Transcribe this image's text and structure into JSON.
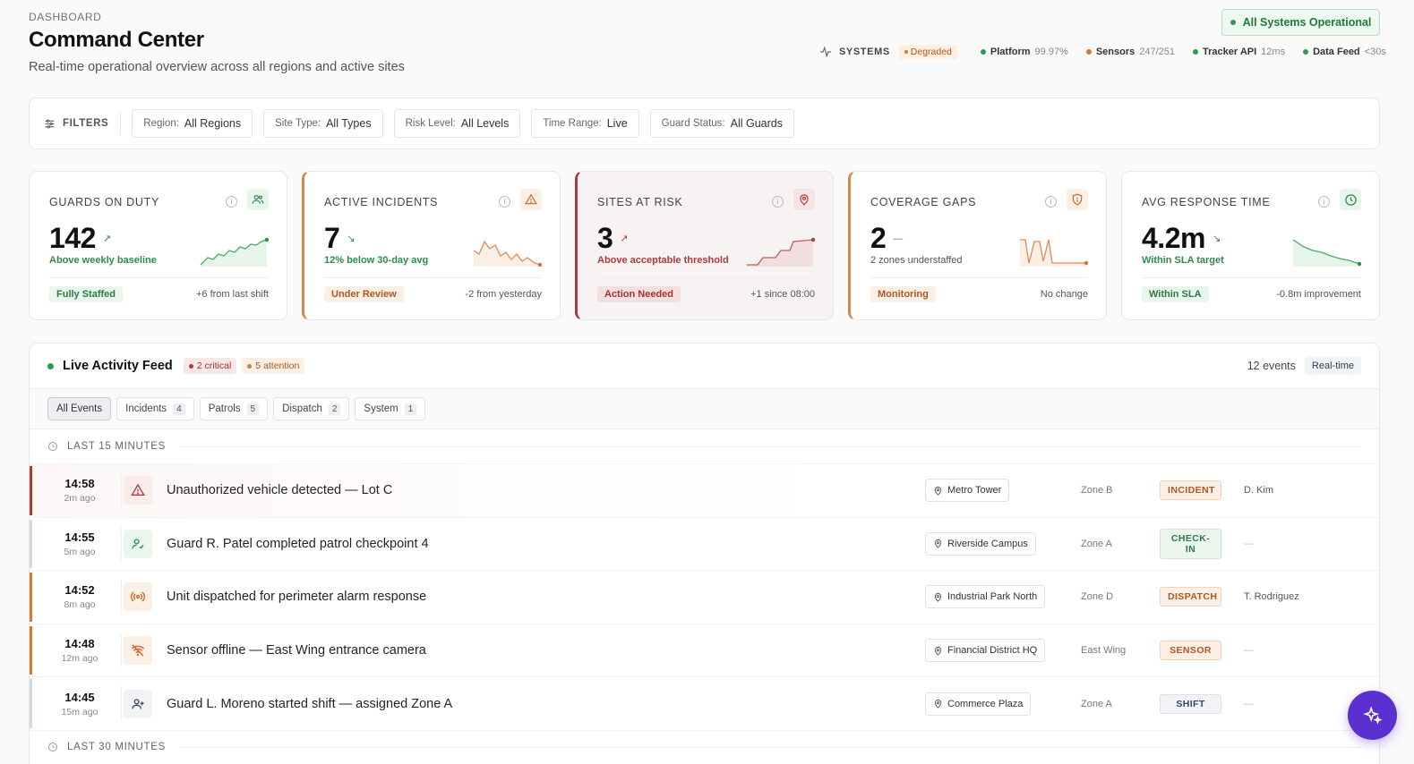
{
  "header": {
    "eyebrow": "DASHBOARD",
    "title": "Command Center",
    "subtitle": "Real-time operational overview across all regions and active sites",
    "ops_status": "All Systems Operational"
  },
  "systems": {
    "label": "SYSTEMS",
    "state": "Degraded",
    "services": [
      {
        "name": "Platform",
        "value": "99.97%",
        "color": "#2e9a52"
      },
      {
        "name": "Sensors",
        "value": "247/251",
        "color": "#d67a32"
      },
      {
        "name": "Tracker API",
        "value": "12ms",
        "color": "#2e9a52"
      },
      {
        "name": "Data Feed",
        "value": "<30s",
        "color": "#2e9a52"
      }
    ]
  },
  "filters": {
    "label": "FILTERS",
    "items": [
      {
        "key": "Region:",
        "value": "All Regions"
      },
      {
        "key": "Site Type:",
        "value": "All Types"
      },
      {
        "key": "Risk Level:",
        "value": "All Levels"
      },
      {
        "key": "Time Range:",
        "value": "Live"
      },
      {
        "key": "Guard Status:",
        "value": "All Guards"
      }
    ]
  },
  "kpis": [
    {
      "label": "GUARDS ON DUTY",
      "value": "142",
      "trend": "↗",
      "caption": "Above weekly baseline",
      "status": "Fully Staffed",
      "delta": "+6 from last shift",
      "icon": "users-icon"
    },
    {
      "label": "ACTIVE INCIDENTS",
      "value": "7",
      "trend": "↘",
      "caption": "12% below 30-day avg",
      "status": "Under Review",
      "delta": "-2 from yesterday",
      "icon": "alert-triangle-icon"
    },
    {
      "label": "SITES AT RISK",
      "value": "3",
      "trend": "↗",
      "caption": "Above acceptable threshold",
      "status": "Action Needed",
      "delta": "+1 since 08:00",
      "icon": "map-pin-icon"
    },
    {
      "label": "COVERAGE GAPS",
      "value": "2",
      "trend": "—",
      "caption": "2 zones understaffed",
      "status": "Monitoring",
      "delta": "No change",
      "icon": "shield-icon"
    },
    {
      "label": "AVG RESPONSE TIME",
      "value": "4.2m",
      "trend": "↘",
      "caption": "Within SLA target",
      "status": "Within SLA",
      "delta": "-0.8m improvement",
      "icon": "clock-icon"
    }
  ],
  "feed": {
    "title": "Live Activity Feed",
    "critical": "2 critical",
    "attention": "5 attention",
    "event_count": "12 events",
    "realtime": "Real-time",
    "tabs": [
      {
        "label": "All Events",
        "count": ""
      },
      {
        "label": "Incidents",
        "count": "4"
      },
      {
        "label": "Patrols",
        "count": "5"
      },
      {
        "label": "Dispatch",
        "count": "2"
      },
      {
        "label": "System",
        "count": "1"
      }
    ],
    "section_15": "LAST 15 MINUTES",
    "section_30": "LAST 30 MINUTES",
    "events": [
      {
        "time": "14:58",
        "ago": "2m ago",
        "desc": "Unauthorized vehicle detected — Lot C",
        "site": "Metro Tower",
        "zone": "Zone B",
        "tag": "INCIDENT",
        "who": "D. Kim"
      },
      {
        "time": "14:55",
        "ago": "5m ago",
        "desc": "Guard R. Patel completed patrol checkpoint 4",
        "site": "Riverside Campus",
        "zone": "Zone A",
        "tag": "CHECK-IN",
        "who": "—"
      },
      {
        "time": "14:52",
        "ago": "8m ago",
        "desc": "Unit dispatched for perimeter alarm response",
        "site": "Industrial Park North",
        "zone": "Zone D",
        "tag": "DISPATCH",
        "who": "T. Rodriguez"
      },
      {
        "time": "14:48",
        "ago": "12m ago",
        "desc": "Sensor offline — East Wing entrance camera",
        "site": "Financial District HQ",
        "zone": "East Wing",
        "tag": "SENSOR",
        "who": "—"
      },
      {
        "time": "14:45",
        "ago": "15m ago",
        "desc": "Guard L. Moreno started shift — assigned Zone A",
        "site": "Commerce Plaza",
        "zone": "Zone A",
        "tag": "SHIFT",
        "who": "—"
      }
    ]
  }
}
